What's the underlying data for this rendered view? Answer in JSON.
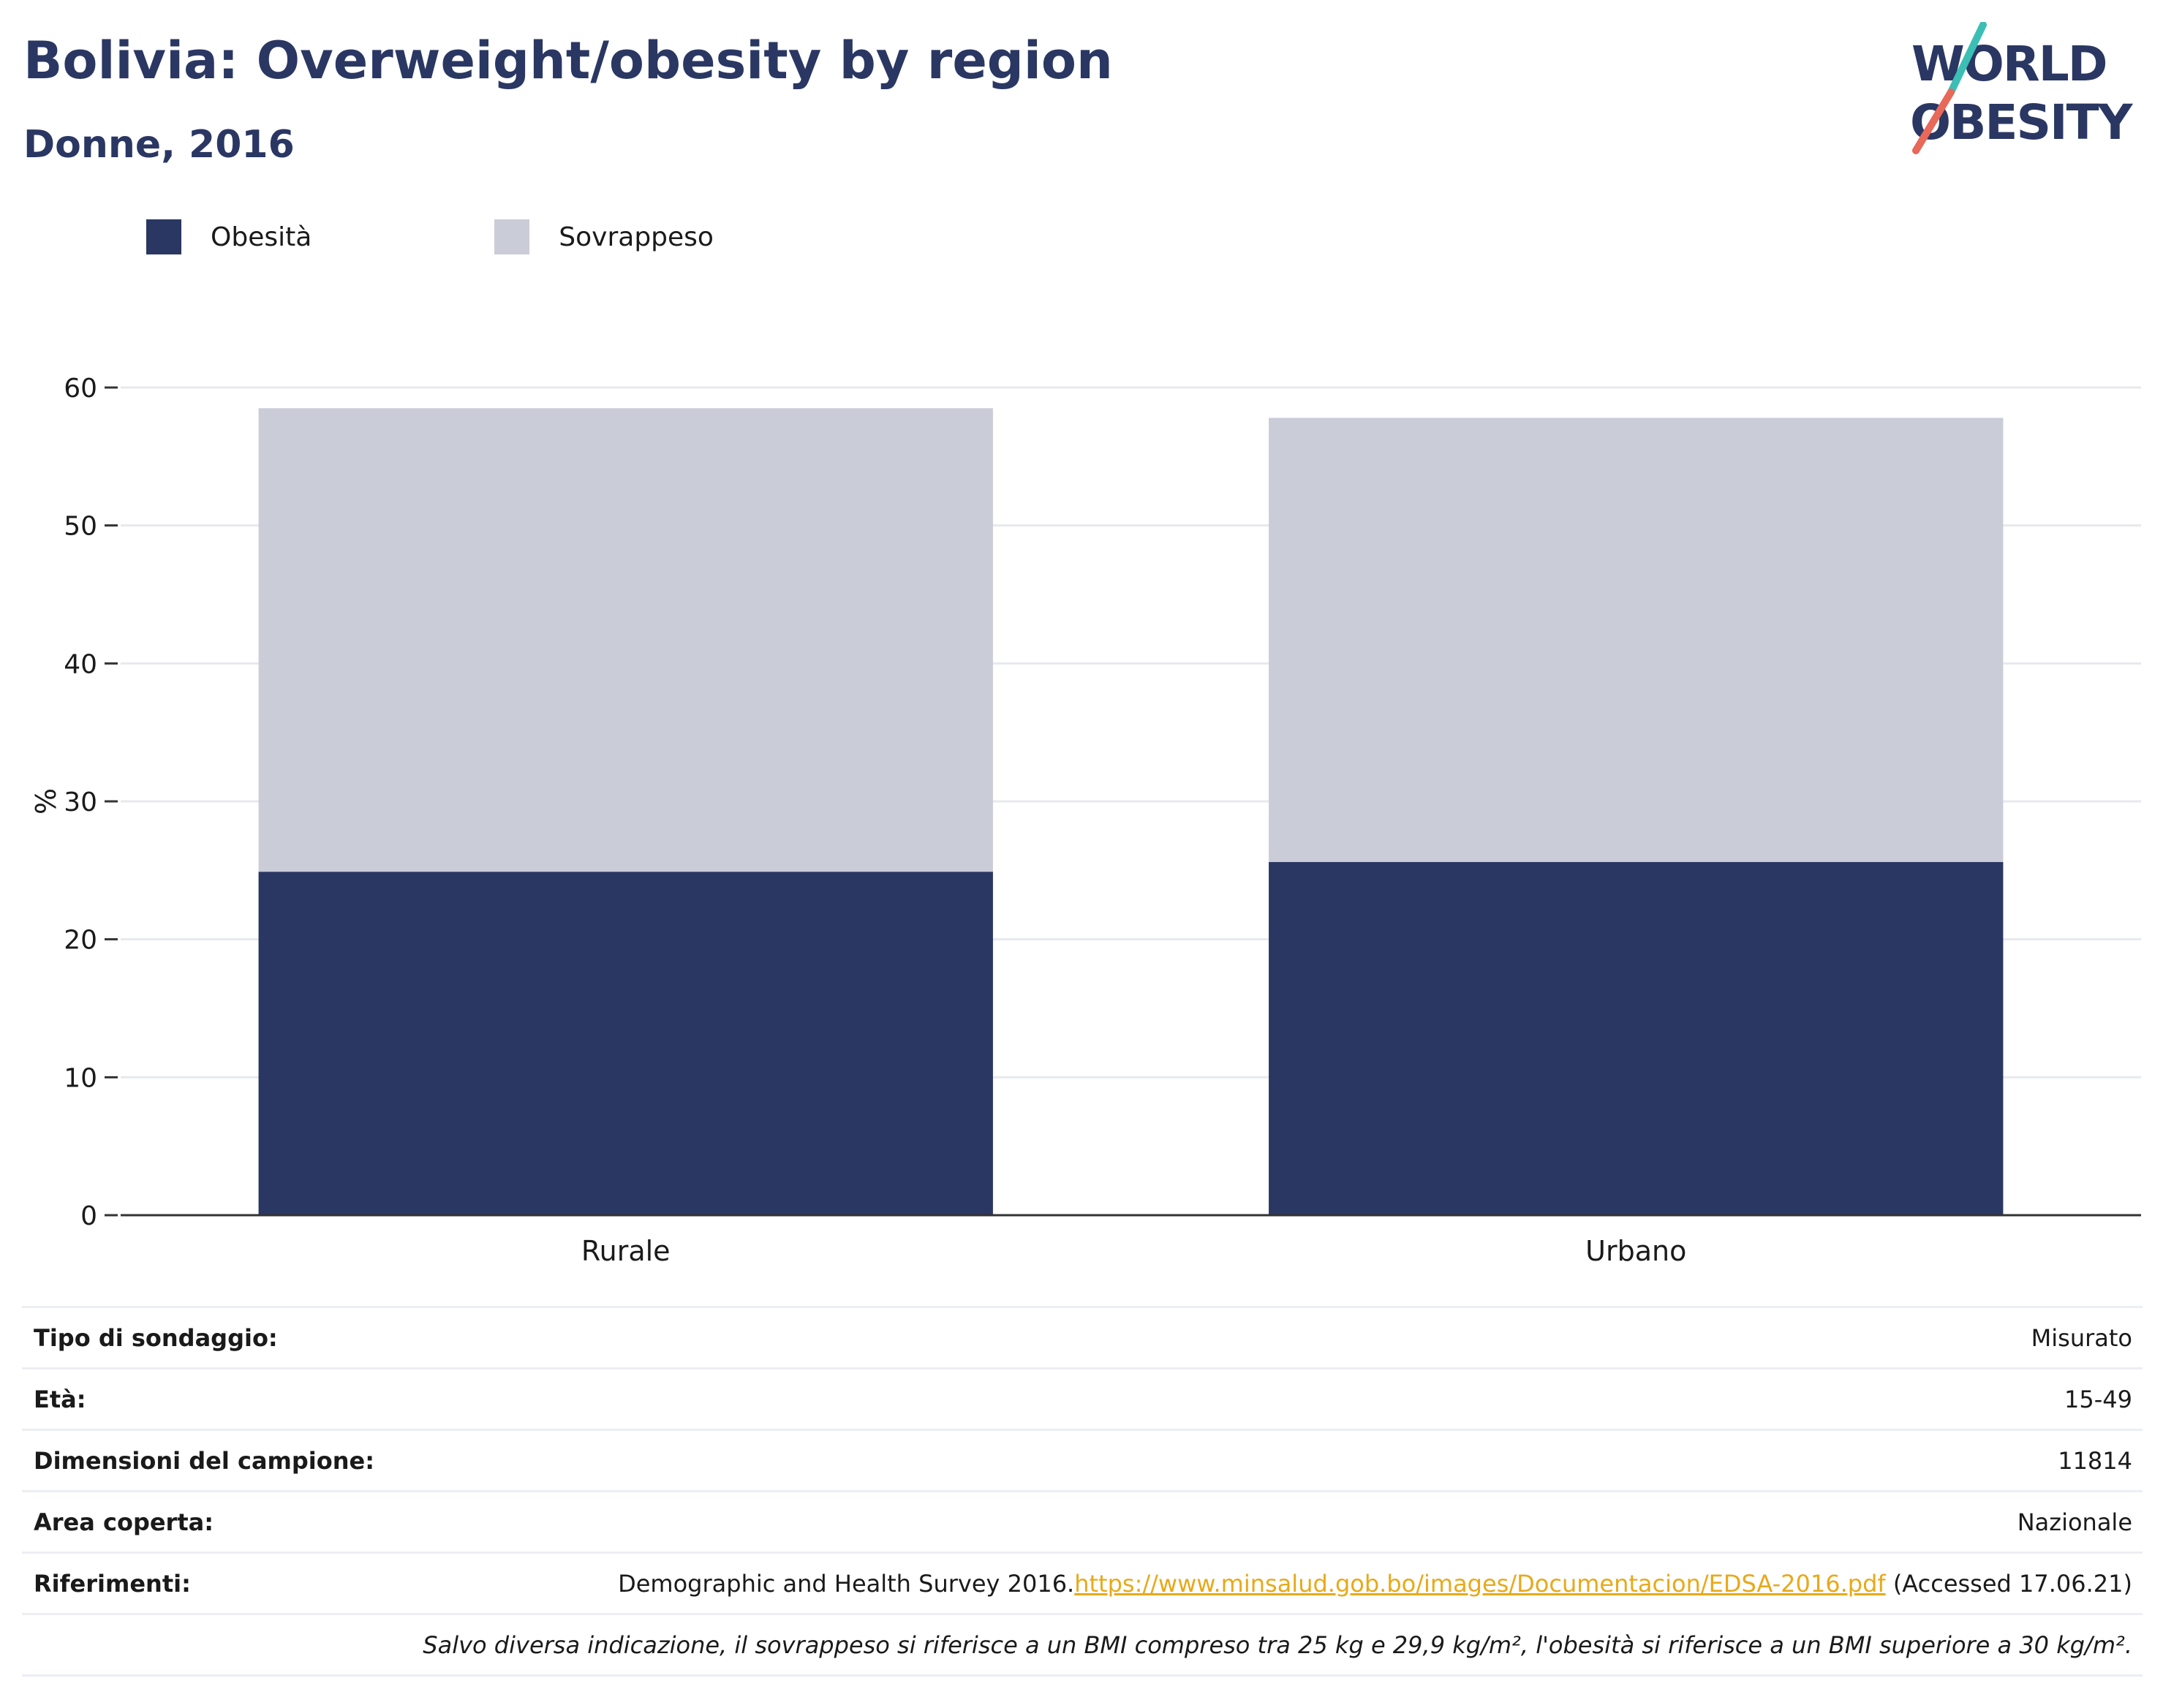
{
  "header": {
    "title": "Bolivia: Overweight/obesity by region",
    "subtitle": "Donne, 2016"
  },
  "logo": {
    "line1": "WORLD",
    "line2": "OBESITY",
    "colors": {
      "text": "#2a3763",
      "slash_top": "#3bbfb5",
      "slash_bottom": "#e8685a"
    }
  },
  "chart_data": {
    "type": "bar",
    "stacked": true,
    "categories": [
      "Rurale",
      "Urbano"
    ],
    "series": [
      {
        "name": "Obesità",
        "values": [
          24.9,
          25.6
        ],
        "color": "#2a3763"
      },
      {
        "name": "Sovrappeso",
        "values": [
          33.6,
          32.2
        ],
        "color": "#cacdd8"
      }
    ],
    "ylabel": "%",
    "ylim": [
      0,
      60
    ],
    "yticks": [
      0,
      10,
      20,
      30,
      40,
      50,
      60
    ],
    "grid": true,
    "legend": "top-left"
  },
  "info": {
    "rows": [
      {
        "key": "Tipo di sondaggio:",
        "value": "Misurato"
      },
      {
        "key": "Età:",
        "value": "15-49"
      },
      {
        "key": "Dimensioni del campione:",
        "value": "11814"
      },
      {
        "key": "Area coperta:",
        "value": "Nazionale"
      }
    ],
    "references": {
      "key": "Riferimenti:",
      "text": "Demographic and Health Survey 2016.",
      "link": "https://www.minsalud.gob.bo/images/Documentacion/EDSA-2016.pdf",
      "suffix": " (Accessed 17.06.21)"
    },
    "note": "Salvo diversa indicazione, il sovrappeso si riferisce a un BMI compreso tra 25 kg e 29,9 kg/m², l'obesità si riferisce a un BMI superiore a 30 kg/m²."
  }
}
